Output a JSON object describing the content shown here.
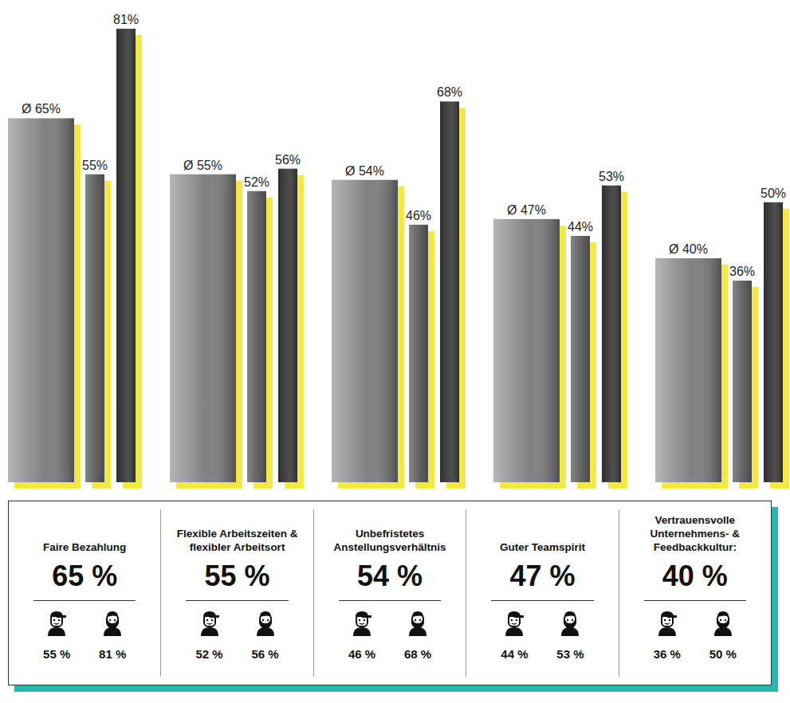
{
  "chart_data": {
    "type": "bar",
    "categories": [
      "Faire Bezahlung",
      "Flexible Arbeitszeiten & flexibler Arbeitsort",
      "Unbefristetes Anstellungsverhältnis",
      "Guter Teamspirit",
      "Vertrauensvolle Unternehmens- & Feedbackkultur:"
    ],
    "series": [
      {
        "color": "#7a7a7a",
        "values": [
          65,
          55,
          54,
          47,
          40
        ],
        "value_labels": [
          "Ø 65%",
          "Ø 55%",
          "Ø 54%",
          "Ø 47%",
          "Ø 40%"
        ],
        "panel_labels": [
          "65 %",
          "55 %",
          "54 %",
          "47 %",
          "40 %"
        ]
      },
      {
        "color": "#5e5e5e",
        "values": [
          55,
          52,
          46,
          44,
          36
        ],
        "value_labels": [
          "55%",
          "52%",
          "46%",
          "44%",
          "36%"
        ],
        "panel_labels": [
          "55 %",
          "52 %",
          "46 %",
          "44 %",
          "36 %"
        ]
      },
      {
        "color": "#363636",
        "values": [
          81,
          56,
          68,
          53,
          50
        ],
        "value_labels": [
          "81%",
          "56%",
          "68%",
          "53%",
          "50%"
        ],
        "panel_labels": [
          "81 %",
          "56 %",
          "68 %",
          "53 %",
          "50 %"
        ]
      }
    ],
    "ylim": [
      0,
      84
    ],
    "tick_labels": false,
    "data_labels": true,
    "grid": false
  }
}
